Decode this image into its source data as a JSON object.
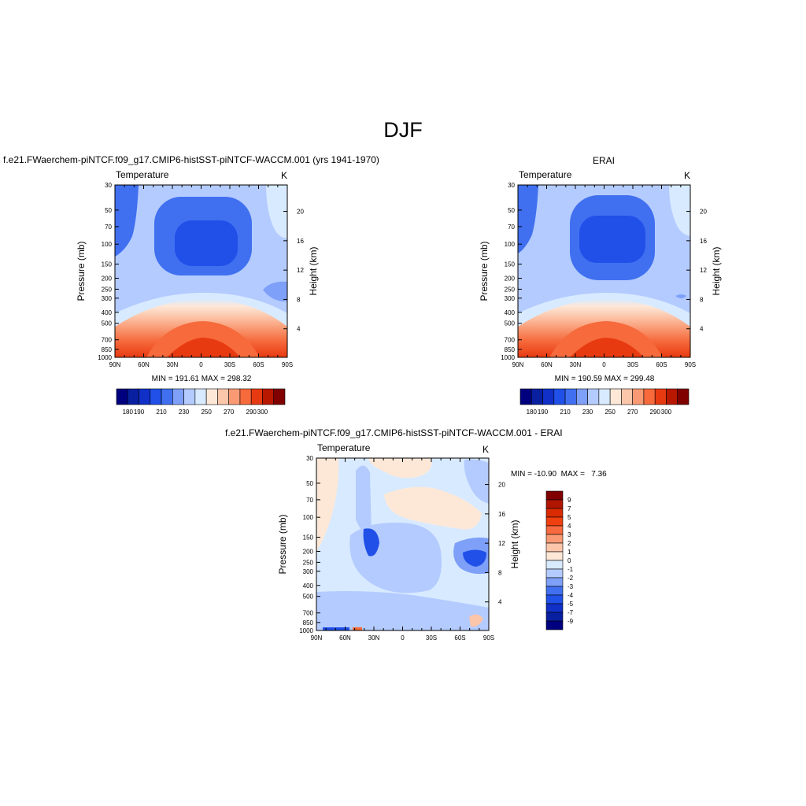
{
  "page": {
    "title": "DJF"
  },
  "panels": {
    "model": {
      "title": "f.e21.FWaerchem-piNTCF.f09_g17.CMIP6-histSST-piNTCF-WACCM.001 (yrs 1941-1970)",
      "left_label": "Temperature",
      "right_label": "K",
      "stats": "MIN = 191.61  MAX = 298.32"
    },
    "obs": {
      "title": "ERAI",
      "left_label": "Temperature",
      "right_label": "K",
      "stats": "MIN = 190.59  MAX = 299.48"
    },
    "diff": {
      "title": "f.e21.FWaerchem-piNTCF.f09_g17.CMIP6-histSST-piNTCF-WACCM.001 - ERAI",
      "left_label": "Temperature",
      "right_label": "K",
      "stats": "MIN = -10.90  MAX =   7.36"
    }
  },
  "chart_data": [
    {
      "type": "heatmap",
      "title": "f.e21.FWaerchem-piNTCF.f09_g17.CMIP6-histSST-piNTCF-WACCM.001 (yrs 1941-1970)",
      "variable": "Temperature",
      "units": "K",
      "xlabel": "",
      "ylabel": "Pressure (mb)",
      "y2label": "Height (km)",
      "x_ticks": [
        "90N",
        "60N",
        "30N",
        "0",
        "30S",
        "60S",
        "90S"
      ],
      "y_ticks": [
        "30",
        "50",
        "70",
        "100",
        "150",
        "200",
        "250",
        "300",
        "400",
        "500",
        "700",
        "850",
        "1000"
      ],
      "y2_ticks": [
        "20",
        "16",
        "12",
        "8",
        "4"
      ],
      "y_scale": "log",
      "y_range": [
        1000,
        30
      ],
      "min": 191.61,
      "max": 298.32,
      "colorbar_labels": [
        "180",
        "190",
        "210",
        "230",
        "250",
        "270",
        "290",
        "300"
      ]
    },
    {
      "type": "heatmap",
      "title": "ERAI",
      "variable": "Temperature",
      "units": "K",
      "xlabel": "",
      "ylabel": "Pressure (mb)",
      "y2label": "Height (km)",
      "x_ticks": [
        "90N",
        "60N",
        "30N",
        "0",
        "30S",
        "60S",
        "90S"
      ],
      "y_ticks": [
        "30",
        "50",
        "70",
        "100",
        "150",
        "200",
        "250",
        "300",
        "400",
        "500",
        "700",
        "850",
        "1000"
      ],
      "y2_ticks": [
        "20",
        "16",
        "12",
        "8",
        "4"
      ],
      "y_scale": "log",
      "y_range": [
        1000,
        30
      ],
      "min": 190.59,
      "max": 299.48,
      "colorbar_labels": [
        "180",
        "190",
        "210",
        "230",
        "250",
        "270",
        "290",
        "300"
      ]
    },
    {
      "type": "heatmap",
      "title": "f.e21.FWaerchem-piNTCF.f09_g17.CMIP6-histSST-piNTCF-WACCM.001 - ERAI",
      "variable": "Temperature",
      "units": "K",
      "xlabel": "",
      "ylabel": "Pressure (mb)",
      "y2label": "Height (km)",
      "x_ticks": [
        "90N",
        "60N",
        "30N",
        "0",
        "30S",
        "60S",
        "90S"
      ],
      "y_ticks": [
        "30",
        "50",
        "70",
        "100",
        "150",
        "200",
        "250",
        "300",
        "400",
        "500",
        "700",
        "850",
        "1000"
      ],
      "y2_ticks": [
        "20",
        "16",
        "12",
        "8",
        "4"
      ],
      "y_scale": "log",
      "y_range": [
        1000,
        30
      ],
      "min": -10.9,
      "max": 7.36,
      "colorbar_labels": [
        "9",
        "7",
        "5",
        "4",
        "3",
        "2",
        "1",
        "0",
        "-1",
        "-2",
        "-3",
        "-4",
        "-5",
        "-7",
        "-9"
      ]
    }
  ],
  "colors": {
    "abs_scale": [
      "#00007f",
      "#0820a0",
      "#1030c8",
      "#2050e8",
      "#4070f0",
      "#7ea0f8",
      "#b4cbff",
      "#d8eaff",
      "#fde8d8",
      "#fcc6aa",
      "#f99a74",
      "#f66a3c",
      "#e83a10",
      "#b81800",
      "#800000"
    ],
    "diff_scale": [
      "#800000",
      "#b01500",
      "#d92a00",
      "#f04010",
      "#f76a40",
      "#f99a74",
      "#fcc6aa",
      "#fde8d8",
      "#d8eaff",
      "#b4cbff",
      "#7ea0f8",
      "#4070f0",
      "#2050e8",
      "#1030c8",
      "#0820a0",
      "#00007f"
    ]
  }
}
